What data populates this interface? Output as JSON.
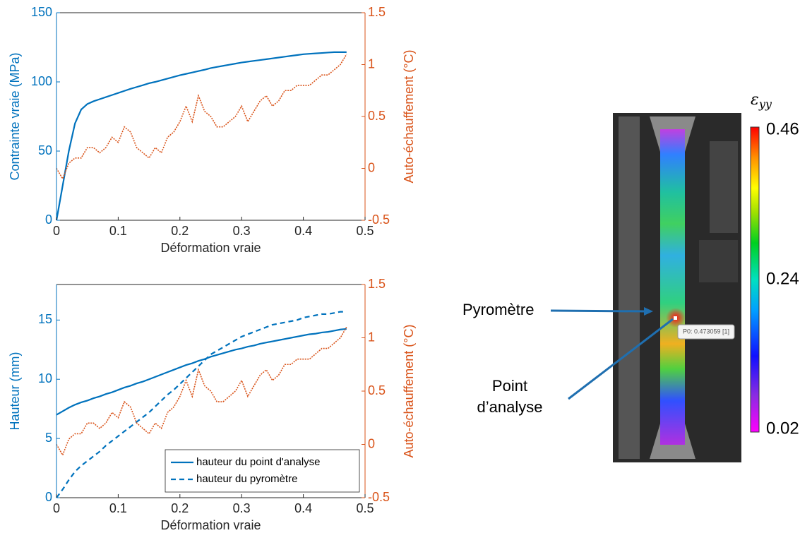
{
  "chart_data": [
    {
      "type": "line",
      "xlabel": "Déformation vraie",
      "ylabel": "Contrainte vraie (MPa)",
      "y2label": "Auto-échauffement (°C)",
      "xlim": [
        0,
        0.5
      ],
      "xticks": [
        0,
        0.1,
        0.2,
        0.3,
        0.4,
        0.5
      ],
      "ylim": [
        0,
        150
      ],
      "yticks": [
        0,
        50,
        100,
        150
      ],
      "y2lim": [
        -0.5,
        1.5
      ],
      "y2ticks": [
        -0.5,
        0,
        0.5,
        1,
        1.5
      ],
      "ycolor": "#0072BD",
      "y2color": "#D95319",
      "grid": false,
      "x": [
        0,
        0.01,
        0.02,
        0.03,
        0.04,
        0.05,
        0.06,
        0.07,
        0.08,
        0.09,
        0.1,
        0.11,
        0.12,
        0.13,
        0.14,
        0.15,
        0.16,
        0.17,
        0.18,
        0.19,
        0.2,
        0.21,
        0.22,
        0.23,
        0.24,
        0.25,
        0.26,
        0.27,
        0.28,
        0.29,
        0.3,
        0.31,
        0.32,
        0.33,
        0.34,
        0.35,
        0.36,
        0.37,
        0.38,
        0.39,
        0.4,
        0.41,
        0.42,
        0.43,
        0.44,
        0.45,
        0.46,
        0.47
      ],
      "series": [
        {
          "color": "#0072BD",
          "linestyle": "solid",
          "values": [
            0,
            25,
            50,
            70,
            80,
            84,
            86,
            87.5,
            89,
            90.5,
            92,
            93.5,
            95,
            96.3,
            97.6,
            99,
            100,
            101.2,
            102.4,
            103.6,
            104.8,
            105.8,
            106.8,
            107.8,
            108.8,
            110,
            110.8,
            111.6,
            112.4,
            113.2,
            114,
            114.6,
            115.2,
            115.8,
            116.4,
            117,
            117.6,
            118.2,
            118.8,
            119.4,
            120,
            120.3,
            120.6,
            120.9,
            121.2,
            121.5,
            121.5,
            121.5
          ]
        },
        {
          "color": "#D95319",
          "linestyle": "dotted",
          "axis": "y2",
          "values": [
            0,
            -0.1,
            0.05,
            0.1,
            0.1,
            0.2,
            0.2,
            0.15,
            0.2,
            0.3,
            0.25,
            0.4,
            0.35,
            0.2,
            0.15,
            0.1,
            0.2,
            0.15,
            0.3,
            0.35,
            0.45,
            0.6,
            0.45,
            0.7,
            0.55,
            0.5,
            0.4,
            0.4,
            0.45,
            0.5,
            0.6,
            0.45,
            0.55,
            0.65,
            0.7,
            0.6,
            0.65,
            0.75,
            0.75,
            0.8,
            0.8,
            0.8,
            0.85,
            0.9,
            0.9,
            0.95,
            1.0,
            1.1
          ]
        }
      ]
    },
    {
      "type": "line",
      "xlabel": "Déformation vraie",
      "ylabel": "Hauteur (mm)",
      "y2label": "Auto-échauffement (°C)",
      "xlim": [
        0,
        0.5
      ],
      "xticks": [
        0,
        0.1,
        0.2,
        0.3,
        0.4,
        0.5
      ],
      "ylim": [
        0,
        18
      ],
      "yticks": [
        0,
        5,
        10,
        15
      ],
      "y2lim": [
        -0.5,
        1.5
      ],
      "y2ticks": [
        -0.5,
        0,
        0.5,
        1,
        1.5
      ],
      "ycolor": "#0072BD",
      "y2color": "#D95319",
      "grid": false,
      "legend": "lower right",
      "x": [
        0,
        0.01,
        0.02,
        0.03,
        0.04,
        0.05,
        0.06,
        0.07,
        0.08,
        0.09,
        0.1,
        0.11,
        0.12,
        0.13,
        0.14,
        0.15,
        0.16,
        0.17,
        0.18,
        0.19,
        0.2,
        0.21,
        0.22,
        0.23,
        0.24,
        0.25,
        0.26,
        0.27,
        0.28,
        0.29,
        0.3,
        0.31,
        0.32,
        0.33,
        0.34,
        0.35,
        0.36,
        0.37,
        0.38,
        0.39,
        0.4,
        0.41,
        0.42,
        0.43,
        0.44,
        0.45,
        0.46,
        0.47
      ],
      "series": [
        {
          "name": "hauteur du point d'analyse",
          "color": "#0072BD",
          "linestyle": "solid",
          "values": [
            7,
            7.3,
            7.6,
            7.85,
            8.05,
            8.2,
            8.4,
            8.55,
            8.75,
            8.9,
            9.1,
            9.3,
            9.45,
            9.65,
            9.8,
            10,
            10.2,
            10.4,
            10.6,
            10.8,
            11,
            11.2,
            11.35,
            11.55,
            11.7,
            11.9,
            12.05,
            12.2,
            12.35,
            12.5,
            12.6,
            12.75,
            12.85,
            13,
            13.1,
            13.2,
            13.3,
            13.4,
            13.5,
            13.6,
            13.7,
            13.8,
            13.85,
            13.95,
            14,
            14.1,
            14.2,
            14.25
          ]
        },
        {
          "name": "hauteur du pyromètre",
          "color": "#0072BD",
          "linestyle": "dashed",
          "values": [
            0,
            0.7,
            1.5,
            2.2,
            2.7,
            3.1,
            3.5,
            3.9,
            4.4,
            4.8,
            5.2,
            5.6,
            6,
            6.4,
            6.8,
            7.2,
            7.7,
            8.2,
            8.7,
            9.1,
            9.6,
            10.1,
            10.6,
            11.1,
            11.6,
            12.1,
            12.4,
            12.7,
            13,
            13.3,
            13.6,
            13.8,
            14,
            14.2,
            14.4,
            14.6,
            14.7,
            14.8,
            14.9,
            15,
            15.2,
            15.3,
            15.4,
            15.5,
            15.5,
            15.6,
            15.7,
            15.7
          ]
        },
        {
          "color": "#D95319",
          "linestyle": "dotted",
          "axis": "y2",
          "values": [
            0,
            -0.1,
            0.05,
            0.1,
            0.1,
            0.2,
            0.2,
            0.15,
            0.2,
            0.3,
            0.25,
            0.4,
            0.35,
            0.2,
            0.15,
            0.1,
            0.2,
            0.15,
            0.3,
            0.35,
            0.45,
            0.6,
            0.45,
            0.7,
            0.55,
            0.5,
            0.4,
            0.4,
            0.45,
            0.5,
            0.6,
            0.45,
            0.55,
            0.65,
            0.7,
            0.6,
            0.65,
            0.75,
            0.75,
            0.8,
            0.8,
            0.8,
            0.85,
            0.9,
            0.9,
            0.95,
            1.0,
            1.1
          ]
        }
      ]
    }
  ],
  "image_panel": {
    "colorbar_symbol": "ε",
    "colorbar_subscript": "yy",
    "clim": [
      0.02,
      0.46
    ],
    "cticks": [
      0.02,
      0.24,
      0.46
    ],
    "tooltip": "P0: 0.473059 [1]",
    "pyrometer_label": "Pyromètre",
    "point_label": [
      "Point",
      "d’analyse"
    ]
  }
}
